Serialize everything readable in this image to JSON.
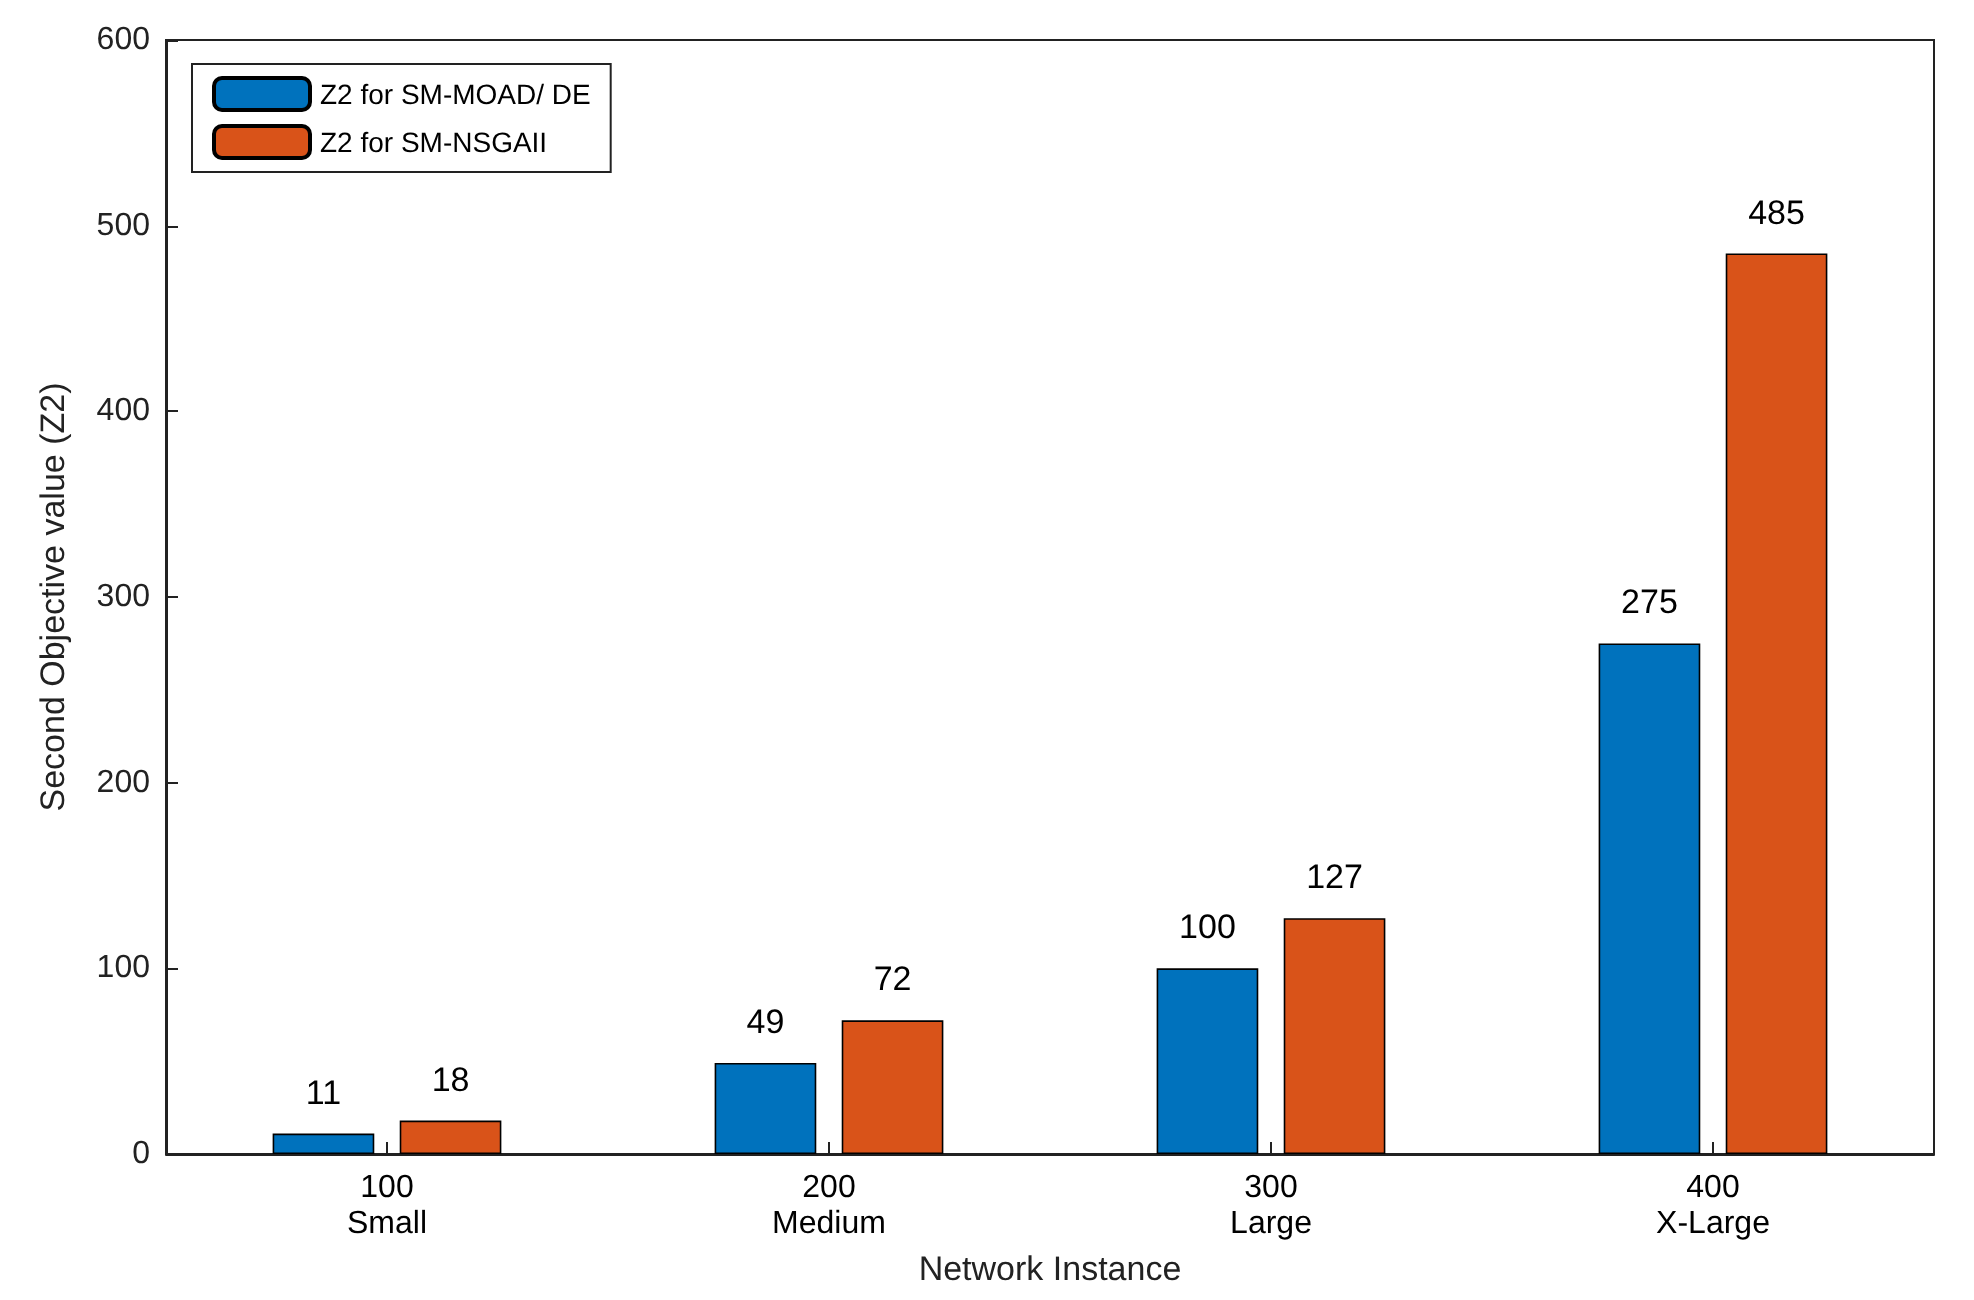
{
  "chart_data": {
    "type": "bar",
    "xlabel": "Network Instance",
    "ylabel": "Second Objective value (Z2)",
    "categories": [
      "100\nSmall",
      "200\nMedium",
      "300\nLarge",
      "400\nX-Large"
    ],
    "series": [
      {
        "name": "Z2 for SM-MOAD/ DE",
        "color": "#0072bd",
        "values": [
          11,
          49,
          100,
          275
        ]
      },
      {
        "name": "Z2 for SM-NSGAII",
        "color": "#d95319",
        "values": [
          18,
          72,
          127,
          485
        ]
      }
    ],
    "ylim": [
      0,
      600
    ],
    "yticks": [
      0,
      100,
      200,
      300,
      400,
      500,
      600
    ],
    "data_labels": true,
    "legend": "top left",
    "grid": false
  }
}
